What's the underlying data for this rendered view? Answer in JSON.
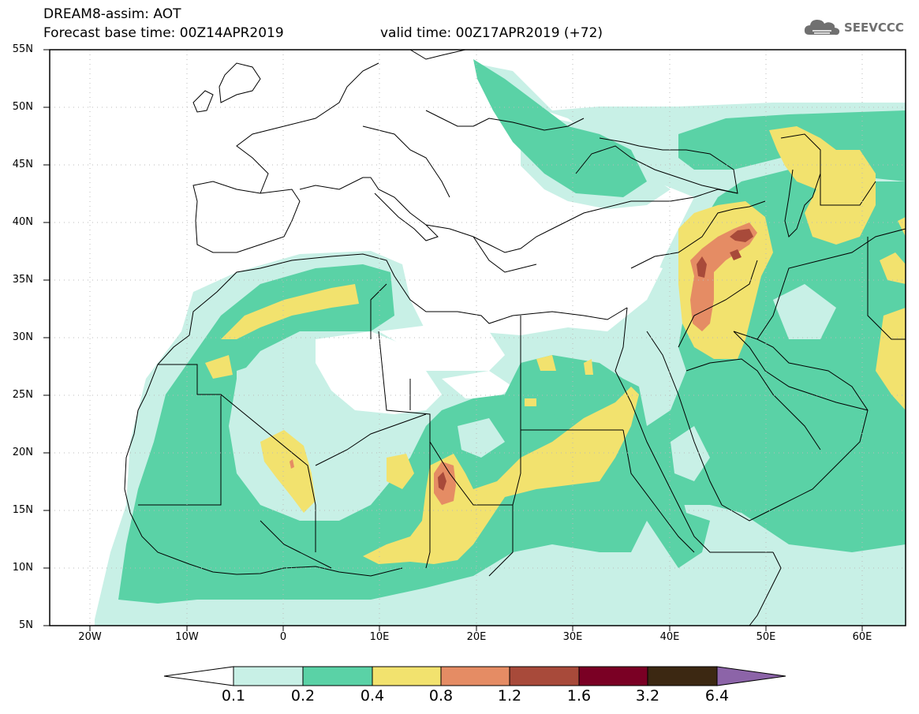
{
  "header": {
    "title": "DREAM8-assim: AOT",
    "base_time": "Forecast base time: 00Z14APR2019",
    "valid_time": "valid time: 00Z17APR2019 (+72)",
    "logo_text": "SEEVCCC",
    "logo_icon": "cloud-icon"
  },
  "axes": {
    "lat_labels": [
      "55N",
      "50N",
      "45N",
      "40N",
      "35N",
      "30N",
      "25N",
      "20N",
      "15N",
      "10N",
      "5N"
    ],
    "lon_labels": [
      "20W",
      "10W",
      "0",
      "10E",
      "20E",
      "30E",
      "40E",
      "50E",
      "60E"
    ]
  },
  "colorbar": {
    "labels": [
      "0.1",
      "0.2",
      "0.4",
      "0.8",
      "1.2",
      "1.6",
      "3.2",
      "6.4"
    ],
    "colors": [
      "#ffffff",
      "#c8f0e6",
      "#5ad2a6",
      "#f2e26e",
      "#e58c64",
      "#a84a3a",
      "#7a0024",
      "#3c2812",
      "#8c64a8"
    ]
  },
  "field": {
    "variable": "AOT",
    "palette": [
      "#c8f0e6",
      "#5ad2a6",
      "#f2e26e",
      "#e58c64",
      "#a84a3a"
    ]
  }
}
